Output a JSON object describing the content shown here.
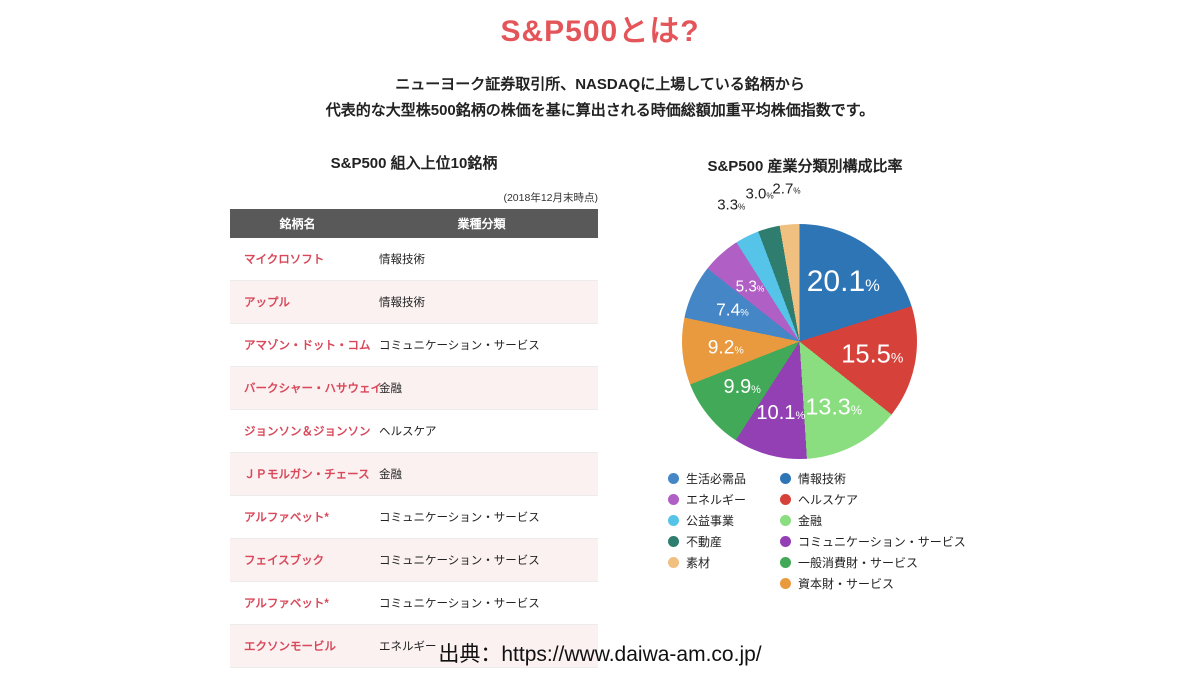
{
  "title": "S&P500とは?",
  "description": [
    "ニューヨーク証券取引所、NASDAQに上場している銘柄から",
    "代表的な大型株500銘柄の株価を基に算出される時価総額加重平均株価指数です。"
  ],
  "table": {
    "title": "S&P500 組入上位10銘柄",
    "note": "(2018年12月末時点)",
    "headers": [
      "銘柄名",
      "業種分類"
    ],
    "rows": [
      {
        "name": "マイクロソフト",
        "sector": "情報技術"
      },
      {
        "name": "アップル",
        "sector": "情報技術"
      },
      {
        "name": "アマゾン・ドット・コム",
        "sector": "コミュニケーション・サービス"
      },
      {
        "name": "バークシャー・ハサウェイ",
        "sector": "金融"
      },
      {
        "name": "ジョンソン＆ジョンソン",
        "sector": "ヘルスケア"
      },
      {
        "name": "ＪＰモルガン・チェース",
        "sector": "金融"
      },
      {
        "name": "アルファベット*",
        "sector": "コミュニケーション・サービス"
      },
      {
        "name": "フェイスブック",
        "sector": "コミュニケーション・サービス"
      },
      {
        "name": "アルファベット*",
        "sector": "コミュニケーション・サービス"
      },
      {
        "name": "エクソンモービル",
        "sector": "エネルギー"
      }
    ]
  },
  "chart_data": {
    "type": "pie",
    "title": "S&P500 産業分類別構成比率",
    "start_angle_deg": 0,
    "direction": "clockwise",
    "slices": [
      {
        "label": "情報技術",
        "value": 20.1,
        "color": "#2e75b6"
      },
      {
        "label": "ヘルスケア",
        "value": 15.5,
        "color": "#d6413a"
      },
      {
        "label": "金融",
        "value": 13.3,
        "color": "#8ade7f"
      },
      {
        "label": "コミュニケーション・サービス",
        "value": 10.1,
        "color": "#9340b5"
      },
      {
        "label": "一般消費財・サービス",
        "value": 9.9,
        "color": "#41a957"
      },
      {
        "label": "資本財・サービス",
        "value": 9.2,
        "color": "#ea9a3e"
      },
      {
        "label": "生活必需品",
        "value": 7.4,
        "color": "#4586c6"
      },
      {
        "label": "エネルギー",
        "value": 5.3,
        "color": "#b05fc4"
      },
      {
        "label": "公益事業",
        "value": 3.3,
        "color": "#56c3e8"
      },
      {
        "label": "不動産",
        "value": 3.0,
        "color": "#2e7d6e"
      },
      {
        "label": "素材",
        "value": 2.7,
        "color": "#f0c080"
      }
    ],
    "legend_columns": [
      [
        "生活必需品",
        "エネルギー",
        "公益事業",
        "不動産",
        "素材"
      ],
      [
        "情報技術",
        "ヘルスケア",
        "金融",
        "コミュニケーション・サービス",
        "一般消費財・サービス",
        "資本財・サービス"
      ]
    ],
    "legend_position": "bottom"
  },
  "footer": "出典：https://www.daiwa-am.co.jp/",
  "colors": {
    "title_accent": "#e4555a",
    "table_header_bg": "#595959",
    "table_header_text": "#ffffff",
    "stock_name_text": "#d9485a",
    "row_alt_bg": "#fbf1f1",
    "text": "#222222"
  }
}
